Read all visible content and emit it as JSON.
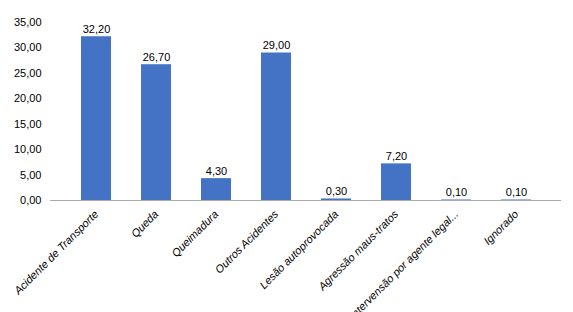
{
  "chart_data": {
    "type": "bar",
    "categories": [
      "Acidente de Transporte",
      "Queda",
      "Queimadura",
      "Outros Acidentes",
      "Lesão autoprovocada",
      "Agressão maus-tratos",
      "intervensão por agente legal...",
      "Ignorado"
    ],
    "values": [
      32.2,
      26.7,
      4.3,
      29.0,
      0.3,
      7.2,
      0.1,
      0.1
    ],
    "value_labels": [
      "32,20",
      "26,70",
      "4,30",
      "29,00",
      "0,30",
      "7,20",
      "0,10",
      "0,10"
    ],
    "data_labels": true,
    "color": "#4472C4",
    "ylim": [
      0,
      35
    ],
    "yticks": [
      {
        "value": 0.0,
        "label": "0,00"
      },
      {
        "value": 5.0,
        "label": "5,00"
      },
      {
        "value": 10.0,
        "label": "10,00"
      },
      {
        "value": 15.0,
        "label": "15,00"
      },
      {
        "value": 20.0,
        "label": "20,00"
      },
      {
        "value": 25.0,
        "label": "25,00"
      },
      {
        "value": 30.0,
        "label": "30,00"
      },
      {
        "value": 35.0,
        "label": "35,00"
      }
    ],
    "grid": false
  }
}
